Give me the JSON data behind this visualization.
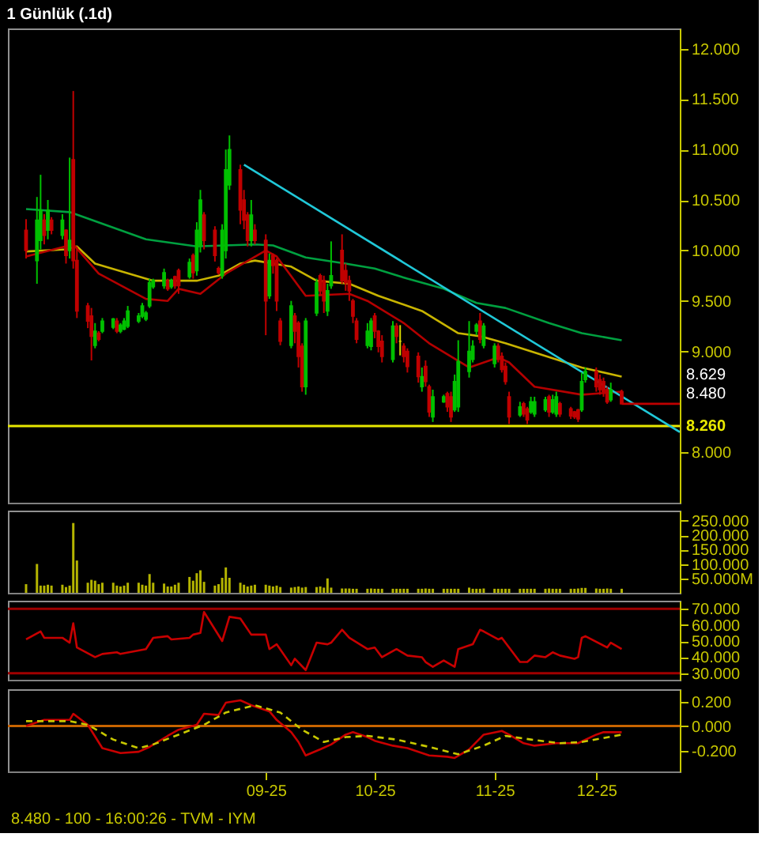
{
  "chart_data": [
    {
      "type": "candlestick",
      "title": "1 Günlük (.1d)",
      "tick_labels": "y",
      "x": [
        "2025-06-27",
        "2025-06-30",
        "2025-07-01",
        "2025-07-02",
        "2025-07-03",
        "2025-07-04",
        "2025-07-07",
        "2025-07-08",
        "2025-07-09",
        "2025-07-10",
        "2025-07-11",
        "2025-07-14",
        "2025-07-15",
        "2025-07-16",
        "2025-07-17",
        "2025-07-18",
        "2025-07-21",
        "2025-07-22",
        "2025-07-23",
        "2025-07-24",
        "2025-07-25",
        "2025-07-28",
        "2025-07-29",
        "2025-07-30",
        "2025-07-31",
        "2025-08-01",
        "2025-08-04",
        "2025-08-05",
        "2025-08-06",
        "2025-08-07",
        "2025-08-08",
        "2025-08-11",
        "2025-08-12",
        "2025-08-13",
        "2025-08-14",
        "2025-08-15",
        "2025-08-18",
        "2025-08-19",
        "2025-08-20",
        "2025-08-21",
        "2025-08-22",
        "2025-08-25",
        "2025-08-26",
        "2025-08-27",
        "2025-08-28",
        "2025-08-29",
        "2025-09-01",
        "2025-09-02",
        "2025-09-03",
        "2025-09-04",
        "2025-09-05",
        "2025-09-08",
        "2025-09-09",
        "2025-09-10",
        "2025-09-11",
        "2025-09-12",
        "2025-09-15",
        "2025-09-16",
        "2025-09-17",
        "2025-09-18",
        "2025-09-19",
        "2025-09-22",
        "2025-09-23",
        "2025-09-24",
        "2025-09-25",
        "2025-09-26",
        "2025-09-29",
        "2025-09-30",
        "2025-10-01",
        "2025-10-02",
        "2025-10-03",
        "2025-10-06",
        "2025-10-07",
        "2025-10-08",
        "2025-10-09",
        "2025-10-10",
        "2025-10-13",
        "2025-10-14",
        "2025-10-15",
        "2025-10-16",
        "2025-10-17",
        "2025-10-20",
        "2025-10-21",
        "2025-10-22",
        "2025-10-23",
        "2025-10-24",
        "2025-10-27",
        "2025-10-28",
        "2025-10-29",
        "2025-10-30",
        "2025-10-31",
        "2025-11-03",
        "2025-11-04",
        "2025-11-05",
        "2025-11-06",
        "2025-11-07",
        "2025-11-10",
        "2025-11-11",
        "2025-11-12",
        "2025-11-13",
        "2025-11-14",
        "2025-11-17",
        "2025-11-18",
        "2025-11-19",
        "2025-11-20",
        "2025-11-21",
        "2025-11-24",
        "2025-11-25",
        "2025-11-26",
        "2025-11-27",
        "2025-11-28",
        "2025-12-01",
        "2025-12-02",
        "2025-12-03",
        "2025-12-04",
        "2025-12-05",
        "2025-12-08"
      ],
      "ohlc": [
        [
          10.2,
          10.31,
          9.92,
          10.0
        ],
        [
          9.9,
          10.53,
          9.67,
          10.3
        ],
        [
          10.1,
          10.75,
          10.01,
          10.4
        ],
        [
          10.3,
          10.36,
          10.06,
          10.15
        ],
        [
          10.2,
          10.5,
          10.11,
          10.4
        ],
        [
          10.3,
          10.33,
          10.16,
          10.2
        ],
        [
          10.15,
          10.36,
          10.11,
          10.3
        ],
        [
          10.2,
          10.21,
          9.87,
          9.95
        ],
        [
          10.0,
          10.92,
          9.92,
          10.1
        ],
        [
          10.9,
          11.58,
          9.82,
          9.9
        ],
        [
          9.9,
          10.04,
          9.33,
          9.4
        ],
        [
          9.45,
          9.48,
          9.23,
          9.3
        ],
        [
          9.35,
          9.43,
          8.91,
          9.15
        ],
        [
          9.06,
          9.28,
          9.03,
          9.2
        ],
        [
          9.18,
          9.2,
          9.1,
          9.12
        ],
        [
          9.2,
          9.33,
          9.18,
          9.3
        ],
        [
          9.24,
          9.33,
          9.22,
          9.32
        ],
        [
          9.3,
          9.33,
          9.18,
          9.2
        ],
        [
          9.2,
          9.28,
          9.18,
          9.26
        ],
        [
          9.22,
          9.33,
          9.21,
          9.3
        ],
        [
          9.25,
          9.45,
          9.23,
          9.4
        ],
        [
          9.3,
          9.38,
          9.28,
          9.35
        ],
        [
          9.35,
          9.48,
          9.33,
          9.45
        ],
        [
          9.32,
          9.4,
          9.3,
          9.38
        ],
        [
          9.45,
          9.72,
          9.43,
          9.68
        ],
        [
          9.64,
          9.72,
          9.62,
          9.7
        ],
        [
          9.65,
          9.82,
          9.62,
          9.78
        ],
        [
          9.7,
          9.72,
          9.6,
          9.62
        ],
        [
          9.64,
          9.72,
          9.62,
          9.7
        ],
        [
          9.74,
          9.75,
          9.62,
          9.65
        ],
        [
          9.8,
          9.82,
          9.57,
          9.65
        ],
        [
          9.74,
          9.92,
          9.72,
          9.88
        ],
        [
          9.95,
          9.97,
          9.72,
          9.78
        ],
        [
          9.8,
          10.28,
          9.75,
          10.2
        ],
        [
          10.05,
          10.6,
          9.98,
          10.5
        ],
        [
          10.35,
          10.38,
          10.01,
          10.1
        ],
        [
          10.2,
          10.24,
          9.89,
          9.95
        ],
        [
          9.82,
          9.84,
          9.76,
          9.78
        ],
        [
          9.75,
          10.26,
          9.72,
          10.2
        ],
        [
          10.0,
          11.0,
          9.92,
          10.8
        ],
        [
          10.65,
          11.14,
          10.6,
          11.0
        ],
        [
          10.8,
          10.85,
          10.26,
          10.4
        ],
        [
          10.5,
          10.6,
          10.21,
          10.3
        ],
        [
          10.35,
          10.38,
          10.04,
          10.1
        ],
        [
          10.1,
          10.5,
          10.04,
          10.35
        ],
        [
          10.2,
          10.26,
          10.06,
          10.1
        ],
        [
          10.1,
          10.16,
          9.16,
          9.5
        ],
        [
          9.55,
          9.97,
          9.52,
          9.9
        ],
        [
          9.95,
          9.97,
          9.77,
          9.85
        ],
        [
          9.9,
          9.92,
          9.4,
          9.5
        ],
        [
          9.3,
          9.33,
          9.06,
          9.1
        ],
        [
          9.06,
          9.5,
          9.03,
          9.45
        ],
        [
          9.35,
          9.38,
          9.08,
          9.2
        ],
        [
          9.28,
          9.3,
          8.84,
          8.95
        ],
        [
          9.05,
          9.08,
          8.6,
          8.65
        ],
        [
          8.65,
          9.33,
          8.57,
          9.3
        ],
        [
          9.38,
          9.72,
          9.35,
          9.68
        ],
        [
          9.75,
          9.77,
          9.55,
          9.6
        ],
        [
          9.7,
          9.75,
          9.38,
          9.5
        ],
        [
          9.4,
          9.67,
          9.35,
          9.6
        ],
        [
          9.65,
          10.09,
          9.62,
          9.75
        ],
        [
          10.0,
          10.16,
          9.67,
          9.7
        ],
        [
          9.8,
          9.87,
          9.6,
          9.68
        ],
        [
          9.7,
          9.75,
          9.5,
          9.6
        ],
        [
          9.5,
          9.52,
          9.28,
          9.35
        ],
        [
          9.3,
          9.33,
          9.08,
          9.12
        ],
        [
          9.06,
          9.28,
          9.03,
          9.2
        ],
        [
          9.05,
          9.33,
          9.01,
          9.3
        ],
        [
          9.35,
          9.38,
          9.13,
          9.2
        ],
        [
          9.2,
          9.21,
          8.99,
          9.05
        ],
        [
          9.1,
          9.16,
          8.89,
          8.95
        ],
        [
          8.92,
          9.3,
          8.89,
          9.25
        ],
        [
          9.25,
          9.28,
          9.08,
          9.15
        ],
        [
          9.1,
          9.26,
          8.96,
          9.1
        ],
        [
          9.05,
          9.08,
          8.89,
          8.95
        ],
        [
          9.0,
          9.03,
          8.79,
          8.85
        ],
        [
          8.95,
          8.99,
          8.69,
          8.75
        ],
        [
          8.65,
          8.84,
          8.6,
          8.75
        ],
        [
          8.85,
          8.91,
          8.65,
          8.7
        ],
        [
          8.65,
          8.67,
          8.35,
          8.4
        ],
        [
          8.35,
          8.62,
          8.3,
          8.55
        ],
        [
          8.5,
          8.57,
          8.49,
          8.55
        ],
        [
          8.58,
          8.6,
          8.4,
          8.45
        ],
        [
          8.55,
          8.6,
          8.3,
          8.35
        ],
        [
          8.42,
          8.77,
          8.4,
          8.7
        ],
        [
          8.45,
          9.11,
          8.4,
          8.9
        ],
        [
          8.8,
          9.3,
          8.74,
          9.0
        ],
        [
          8.92,
          9.11,
          8.89,
          9.05
        ],
        [
          9.2,
          9.28,
          9.16,
          9.26
        ],
        [
          9.3,
          9.38,
          9.08,
          9.12
        ],
        [
          9.06,
          9.28,
          9.03,
          9.25
        ],
        [
          8.88,
          9.08,
          8.84,
          9.05
        ],
        [
          9.05,
          9.08,
          8.89,
          8.92
        ],
        [
          8.95,
          8.99,
          8.79,
          8.82
        ],
        [
          8.85,
          8.89,
          8.67,
          8.7
        ],
        [
          8.55,
          8.6,
          8.28,
          8.35
        ],
        [
          8.37,
          8.5,
          8.35,
          8.45
        ],
        [
          8.48,
          8.5,
          8.35,
          8.38
        ],
        [
          8.43,
          8.45,
          8.28,
          8.32
        ],
        [
          8.4,
          8.55,
          8.38,
          8.5
        ],
        [
          8.38,
          8.55,
          8.35,
          8.5
        ],
        [
          8.42,
          8.55,
          8.4,
          8.52
        ],
        [
          8.55,
          8.57,
          8.35,
          8.4
        ],
        [
          8.4,
          8.57,
          8.38,
          8.52
        ],
        [
          8.38,
          8.6,
          8.35,
          8.55
        ],
        [
          8.48,
          8.5,
          8.35,
          8.38
        ],
        [
          8.43,
          8.45,
          8.33,
          8.36
        ],
        [
          8.4,
          8.41,
          8.33,
          8.35
        ],
        [
          8.42,
          8.43,
          8.3,
          8.33
        ],
        [
          8.42,
          8.79,
          8.4,
          8.7
        ],
        [
          8.72,
          8.84,
          8.69,
          8.8
        ],
        [
          8.8,
          8.84,
          8.6,
          8.65
        ],
        [
          8.72,
          8.77,
          8.57,
          8.62
        ],
        [
          8.7,
          8.74,
          8.55,
          8.6
        ],
        [
          8.62,
          8.65,
          8.48,
          8.5
        ],
        [
          8.52,
          8.69,
          8.5,
          8.62
        ],
        [
          8.6,
          8.62,
          8.48,
          8.48
        ]
      ],
      "xlim": [
        "2025-06-22",
        "2025-12-24"
      ],
      "ylim": [
        7.5,
        12.2
      ],
      "yticks": [
        {
          "value": 8,
          "label": "8.000"
        },
        {
          "value": 9,
          "label": "9.000"
        },
        {
          "value": 9.5,
          "label": "9.500"
        },
        {
          "value": 10,
          "label": "10.000"
        },
        {
          "value": 10.5,
          "label": "10.500"
        },
        {
          "value": 11,
          "label": "11.000"
        },
        {
          "value": 11.5,
          "label": "11.500"
        },
        {
          "value": 12,
          "label": "12.000"
        }
      ],
      "series": [
        {
          "type": "line",
          "color": "#00a040",
          "x": [
            "2025-06-27",
            "2025-07-09",
            "2025-07-30",
            "2025-08-13",
            "2025-08-29",
            "2025-09-03",
            "2025-09-12",
            "2025-09-23",
            "2025-10-01",
            "2025-10-10",
            "2025-10-20",
            "2025-10-29",
            "2025-11-06",
            "2025-11-18",
            "2025-11-27",
            "2025-12-08"
          ],
          "values": [
            10.41,
            10.38,
            10.11,
            10.04,
            10.06,
            10.05,
            9.93,
            9.87,
            9.82,
            9.72,
            9.62,
            9.48,
            9.43,
            9.28,
            9.18,
            9.11
          ]
        },
        {
          "type": "line",
          "color": "#c8b400",
          "x": [
            "2025-06-27",
            "2025-07-08",
            "2025-07-11",
            "2025-07-16",
            "2025-08-01",
            "2025-08-13",
            "2025-08-19",
            "2025-08-25",
            "2025-08-29",
            "2025-09-08",
            "2025-09-15",
            "2025-09-24",
            "2025-10-02",
            "2025-10-14",
            "2025-10-24",
            "2025-10-30",
            "2025-11-06",
            "2025-11-27",
            "2025-12-08"
          ],
          "values": [
            9.99,
            10.01,
            10.04,
            9.87,
            9.7,
            9.7,
            9.75,
            9.87,
            9.9,
            9.84,
            9.7,
            9.67,
            9.55,
            9.4,
            9.18,
            9.15,
            9.08,
            8.84,
            8.75
          ]
        },
        {
          "type": "line",
          "color": "#b40000",
          "x": [
            "2025-06-27",
            "2025-07-10",
            "2025-07-17",
            "2025-07-30",
            "2025-08-05",
            "2025-08-08",
            "2025-08-14",
            "2025-08-21",
            "2025-09-01",
            "2025-09-04",
            "2025-09-12",
            "2025-09-24",
            "2025-09-29",
            "2025-10-09",
            "2025-10-16",
            "2025-10-27",
            "2025-11-04",
            "2025-11-07",
            "2025-11-14",
            "2025-11-27",
            "2025-12-08"
          ],
          "values": [
            9.94,
            10.06,
            9.77,
            9.52,
            9.5,
            9.62,
            9.57,
            9.77,
            10.0,
            9.94,
            9.55,
            9.57,
            9.5,
            9.28,
            9.08,
            8.84,
            8.94,
            8.89,
            8.65,
            8.57,
            8.6
          ]
        },
        {
          "type": "line",
          "color": "#20c8d8",
          "x": [
            "2025-08-26",
            "2025-12-24"
          ],
          "values": [
            10.85,
            8.2
          ]
        },
        {
          "type": "line",
          "color": "#c00000",
          "x": [
            "2025-12-08",
            "2025-12-24"
          ],
          "values": [
            8.48,
            8.48
          ]
        }
      ],
      "ref_lines": [
        {
          "axis": "y",
          "value": 8.26,
          "label": "8.260",
          "color": "#e8e800"
        }
      ],
      "annotations": [
        "8.629",
        "8.480"
      ]
    },
    {
      "type": "bar",
      "tick_labels": "y",
      "color": "#b4b400",
      "x": [
        "2025-06-27",
        "2025-06-30",
        "2025-07-01",
        "2025-07-02",
        "2025-07-03",
        "2025-07-04",
        "2025-07-07",
        "2025-07-08",
        "2025-07-09",
        "2025-07-10",
        "2025-07-11",
        "2025-07-14",
        "2025-07-15",
        "2025-07-16",
        "2025-07-17",
        "2025-07-18",
        "2025-07-21",
        "2025-07-22",
        "2025-07-23",
        "2025-07-24",
        "2025-07-25",
        "2025-07-28",
        "2025-07-29",
        "2025-07-30",
        "2025-07-31",
        "2025-08-01",
        "2025-08-04",
        "2025-08-05",
        "2025-08-06",
        "2025-08-07",
        "2025-08-08",
        "2025-08-11",
        "2025-08-12",
        "2025-08-13",
        "2025-08-14",
        "2025-08-15",
        "2025-08-18",
        "2025-08-19",
        "2025-08-20",
        "2025-08-21",
        "2025-08-22",
        "2025-08-25",
        "2025-08-26",
        "2025-08-27",
        "2025-08-28",
        "2025-08-29",
        "2025-09-01",
        "2025-09-02",
        "2025-09-03",
        "2025-09-04",
        "2025-09-05",
        "2025-09-08",
        "2025-09-09",
        "2025-09-10",
        "2025-09-11",
        "2025-09-12",
        "2025-09-15",
        "2025-09-16",
        "2025-09-17",
        "2025-09-18",
        "2025-09-19",
        "2025-09-22",
        "2025-09-23",
        "2025-09-24",
        "2025-09-25",
        "2025-09-26",
        "2025-09-29",
        "2025-09-30",
        "2025-10-01",
        "2025-10-02",
        "2025-10-03",
        "2025-10-06",
        "2025-10-07",
        "2025-10-08",
        "2025-10-09",
        "2025-10-10",
        "2025-10-13",
        "2025-10-14",
        "2025-10-15",
        "2025-10-16",
        "2025-10-17",
        "2025-10-20",
        "2025-10-21",
        "2025-10-22",
        "2025-10-23",
        "2025-10-24",
        "2025-10-27",
        "2025-10-28",
        "2025-10-29",
        "2025-10-30",
        "2025-10-31",
        "2025-11-03",
        "2025-11-04",
        "2025-11-05",
        "2025-11-06",
        "2025-11-07",
        "2025-11-10",
        "2025-11-11",
        "2025-11-12",
        "2025-11-13",
        "2025-11-14",
        "2025-11-17",
        "2025-11-18",
        "2025-11-19",
        "2025-11-20",
        "2025-11-21",
        "2025-11-24",
        "2025-11-25",
        "2025-11-26",
        "2025-11-27",
        "2025-11-28",
        "2025-12-01",
        "2025-12-02",
        "2025-12-03",
        "2025-12-04",
        "2025-12-05",
        "2025-12-08"
      ],
      "values": [
        30,
        100,
        25,
        25,
        28,
        25,
        28,
        20,
        25,
        242,
        112,
        35,
        45,
        42,
        30,
        35,
        35,
        25,
        22,
        25,
        35,
        35,
        28,
        25,
        65,
        35,
        32,
        22,
        22,
        28,
        35,
        55,
        42,
        68,
        78,
        38,
        25,
        30,
        52,
        88,
        52,
        35,
        28,
        22,
        25,
        28,
        28,
        25,
        22,
        25,
        20,
        18,
        20,
        22,
        18,
        20,
        20,
        22,
        18,
        50,
        18,
        15,
        15,
        15,
        14,
        14,
        14,
        15,
        14,
        14,
        14,
        14,
        14,
        14,
        14,
        14,
        14,
        14,
        15,
        14,
        14,
        14,
        14,
        14,
        14,
        14,
        18,
        14,
        14,
        14,
        15,
        14,
        14,
        14,
        14,
        14,
        14,
        14,
        14,
        14,
        14,
        14,
        15,
        14,
        14,
        14,
        14,
        14,
        15,
        17,
        17,
        15,
        14,
        14,
        15,
        14,
        14
      ],
      "xlim": [
        "2025-06-22",
        "2025-12-24"
      ],
      "ylim": [
        0,
        285
      ],
      "yticks": [
        {
          "value": 50,
          "label": "50.000M"
        },
        {
          "value": 100,
          "label": "100.000"
        },
        {
          "value": 150,
          "label": "150.000"
        },
        {
          "value": 200,
          "label": "200.000"
        },
        {
          "value": 250,
          "label": "250.000"
        }
      ]
    },
    {
      "type": "line",
      "tick_labels": "y",
      "xlim": [
        "2025-06-22",
        "2025-12-24"
      ],
      "ylim": [
        26,
        75
      ],
      "yticks": [
        {
          "value": 30,
          "label": "30.000"
        },
        {
          "value": 40,
          "label": "40.000"
        },
        {
          "value": 50,
          "label": "50.000"
        },
        {
          "value": 60,
          "label": "60.000"
        },
        {
          "value": 70,
          "label": "70.000"
        }
      ],
      "series": [
        {
          "type": "line",
          "color": "#c80000",
          "x": [
            "2025-06-27",
            "2025-07-01",
            "2025-07-02",
            "2025-07-07",
            "2025-07-09",
            "2025-07-10",
            "2025-07-11",
            "2025-07-16",
            "2025-07-18",
            "2025-07-22",
            "2025-07-23",
            "2025-07-30",
            "2025-08-01",
            "2025-08-05",
            "2025-08-06",
            "2025-08-11",
            "2025-08-12",
            "2025-08-14",
            "2025-08-15",
            "2025-08-20",
            "2025-08-22",
            "2025-08-25",
            "2025-08-28",
            "2025-09-01",
            "2025-09-02",
            "2025-09-04",
            "2025-09-08",
            "2025-09-09",
            "2025-09-12",
            "2025-09-15",
            "2025-09-18",
            "2025-09-19",
            "2025-09-22",
            "2025-09-24",
            "2025-09-29",
            "2025-10-01",
            "2025-10-03",
            "2025-10-07",
            "2025-10-10",
            "2025-10-14",
            "2025-10-15",
            "2025-10-17",
            "2025-10-20",
            "2025-10-23",
            "2025-10-24",
            "2025-10-28",
            "2025-10-30",
            "2025-10-31",
            "2025-11-04",
            "2025-11-05",
            "2025-11-10",
            "2025-11-12",
            "2025-11-14",
            "2025-11-17",
            "2025-11-19",
            "2025-11-21",
            "2025-11-25",
            "2025-11-26",
            "2025-11-27",
            "2025-11-28",
            "2025-12-04",
            "2025-12-05",
            "2025-12-08"
          ],
          "values": [
            51,
            56,
            52,
            52,
            49,
            61,
            46,
            40,
            42,
            43,
            42,
            45,
            52,
            53,
            51,
            52,
            54,
            55,
            68,
            50,
            65,
            64,
            54,
            54,
            45,
            48,
            35,
            39,
            32,
            49,
            48,
            49,
            57,
            52,
            45,
            46,
            40,
            45,
            41,
            40,
            37,
            34,
            38,
            34,
            45,
            48,
            57,
            56,
            51,
            52,
            37,
            37,
            41,
            40,
            43,
            41,
            39,
            40,
            52,
            53,
            46,
            49,
            45
          ]
        }
      ],
      "ref_lines": [
        {
          "axis": "y",
          "value": 70,
          "color": "#a00000"
        },
        {
          "axis": "y",
          "value": 30,
          "color": "#a00000"
        }
      ]
    },
    {
      "type": "line",
      "xlim": [
        "2025-06-22",
        "2025-12-24"
      ],
      "ylim": [
        -0.37,
        0.3
      ],
      "xticks": [
        {
          "value": "2025-09-01",
          "label": "09-25"
        },
        {
          "value": "2025-10-01",
          "label": "10-25"
        },
        {
          "value": "2025-11-03",
          "label": "11-25"
        },
        {
          "value": "2025-12-01",
          "label": "12-25"
        }
      ],
      "yticks": [
        {
          "value": -0.2,
          "label": "-0.200"
        },
        {
          "value": 0,
          "label": "0.000"
        },
        {
          "value": 0.2,
          "label": "0.200"
        }
      ],
      "series": [
        {
          "type": "line",
          "color": "#c80000",
          "x": [
            "2025-06-27",
            "2025-07-02",
            "2025-07-09",
            "2025-07-10",
            "2025-07-14",
            "2025-07-18",
            "2025-07-23",
            "2025-07-28",
            "2025-07-31",
            "2025-08-05",
            "2025-08-08",
            "2025-08-13",
            "2025-08-15",
            "2025-08-19",
            "2025-08-21",
            "2025-08-25",
            "2025-08-28",
            "2025-09-02",
            "2025-09-04",
            "2025-09-08",
            "2025-09-10",
            "2025-09-12",
            "2025-09-16",
            "2025-09-19",
            "2025-09-23",
            "2025-09-25",
            "2025-09-29",
            "2025-10-01",
            "2025-10-06",
            "2025-10-10",
            "2025-10-16",
            "2025-10-21",
            "2025-10-23",
            "2025-10-27",
            "2025-10-31",
            "2025-11-05",
            "2025-11-07",
            "2025-11-11",
            "2025-11-14",
            "2025-11-20",
            "2025-11-26",
            "2025-12-01",
            "2025-12-03",
            "2025-12-08"
          ],
          "values": [
            0,
            0.05,
            0.05,
            0.1,
            0.01,
            -0.18,
            -0.22,
            -0.21,
            -0.17,
            -0.08,
            -0.03,
            0.01,
            0.1,
            0.09,
            0.19,
            0.21,
            0.17,
            0.12,
            0.05,
            -0.05,
            -0.13,
            -0.24,
            -0.19,
            -0.15,
            -0.07,
            -0.05,
            -0.09,
            -0.12,
            -0.16,
            -0.18,
            -0.24,
            -0.25,
            -0.26,
            -0.19,
            -0.07,
            -0.04,
            -0.07,
            -0.14,
            -0.16,
            -0.14,
            -0.14,
            -0.07,
            -0.05,
            -0.05
          ]
        },
        {
          "type": "line",
          "color": "#c8c800",
          "line_style": "dashed",
          "x": [
            "2025-06-27",
            "2025-07-09",
            "2025-07-14",
            "2025-07-21",
            "2025-07-28",
            "2025-08-01",
            "2025-08-08",
            "2025-08-15",
            "2025-08-21",
            "2025-08-29",
            "2025-09-05",
            "2025-09-11",
            "2025-09-17",
            "2025-09-23",
            "2025-09-29",
            "2025-10-07",
            "2025-10-16",
            "2025-10-24",
            "2025-10-31",
            "2025-11-06",
            "2025-11-13",
            "2025-11-21",
            "2025-11-27",
            "2025-12-08"
          ],
          "values": [
            0.04,
            0.04,
            0.01,
            -0.11,
            -0.18,
            -0.15,
            -0.07,
            0.01,
            0.11,
            0.17,
            0.11,
            -0.03,
            -0.13,
            -0.09,
            -0.08,
            -0.11,
            -0.17,
            -0.23,
            -0.16,
            -0.08,
            -0.11,
            -0.14,
            -0.13,
            -0.07
          ]
        }
      ],
      "ref_lines": [
        {
          "axis": "y",
          "value": 0,
          "color": "#c86400"
        }
      ],
      "annotations": [
        "8.480 - 100 - 16:00:26 - TVM - IYM"
      ]
    }
  ]
}
